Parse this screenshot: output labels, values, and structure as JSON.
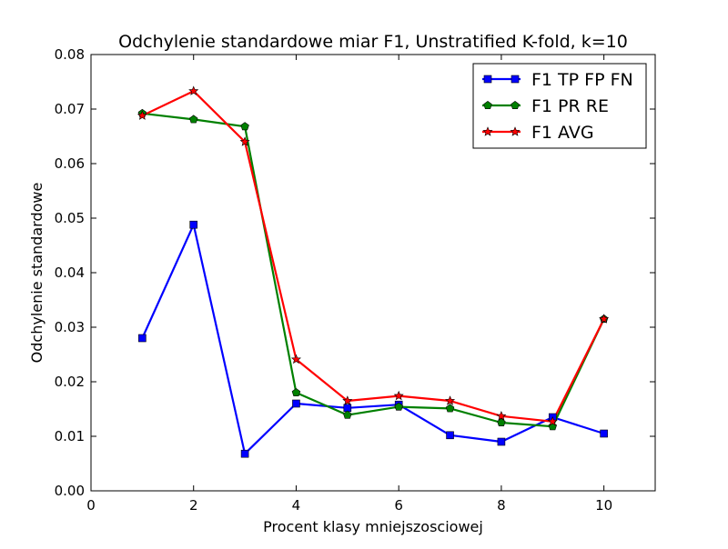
{
  "chart_data": {
    "type": "line",
    "title": "Odchylenie standardowe miar F1, Unstratified K-fold, k=10",
    "xlabel": "Procent klasy mniejszosciowej",
    "ylabel": "Odchylenie standardowe",
    "xlim": [
      0,
      11
    ],
    "ylim": [
      0,
      0.08
    ],
    "xticks": [
      0,
      2,
      4,
      6,
      8,
      10
    ],
    "xtick_labels": [
      "0",
      "2",
      "4",
      "6",
      "8",
      "10"
    ],
    "yticks": [
      0,
      0.01,
      0.02,
      0.03,
      0.04,
      0.05,
      0.06,
      0.07,
      0.08
    ],
    "ytick_labels": [
      "0.00",
      "0.01",
      "0.02",
      "0.03",
      "0.04",
      "0.05",
      "0.06",
      "0.07",
      "0.08"
    ],
    "grid": false,
    "legend_position": "top-right",
    "x": [
      1,
      2,
      3,
      4,
      5,
      6,
      7,
      8,
      9,
      10
    ],
    "series": [
      {
        "name": "F1 TP FP FN",
        "color": "#0000ff",
        "marker": "square",
        "values": [
          0.028,
          0.0488,
          0.0068,
          0.016,
          0.0152,
          0.0158,
          0.0102,
          0.009,
          0.0135,
          0.0105
        ]
      },
      {
        "name": "F1 PR RE",
        "color": "#008000",
        "marker": "pentagon",
        "values": [
          0.0692,
          0.0681,
          0.0668,
          0.018,
          0.0139,
          0.0154,
          0.0151,
          0.0125,
          0.0118,
          0.0315
        ]
      },
      {
        "name": "F1 AVG",
        "color": "#ff0000",
        "marker": "star",
        "values": [
          0.0688,
          0.0733,
          0.064,
          0.0241,
          0.0165,
          0.0174,
          0.0165,
          0.0137,
          0.0127,
          0.0315
        ]
      }
    ]
  }
}
